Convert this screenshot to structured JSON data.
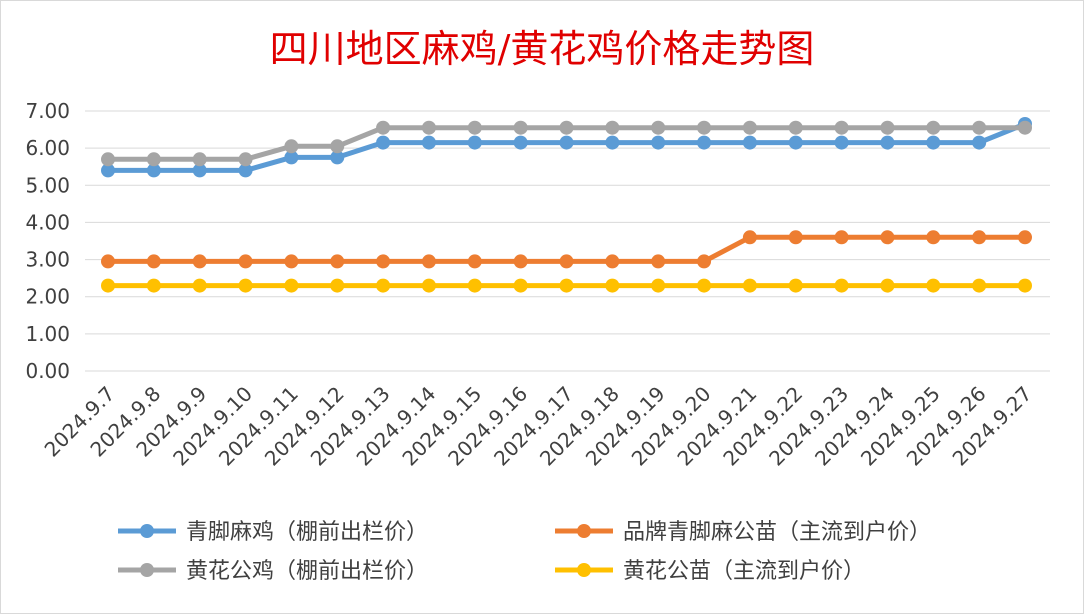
{
  "chart_data": {
    "type": "line",
    "title": "四川地区麻鸡/黄花鸡价格走势图",
    "xlabel": "",
    "ylabel": "",
    "ylim": [
      0,
      7
    ],
    "y_ticks": [
      "0.00",
      "1.00",
      "2.00",
      "3.00",
      "4.00",
      "5.00",
      "6.00",
      "7.00"
    ],
    "grid": true,
    "legend_position": "bottom",
    "categories": [
      "2024.9.7",
      "2024.9.8",
      "2024.9.9",
      "2024.9.10",
      "2024.9.11",
      "2024.9.12",
      "2024.9.13",
      "2024.9.14",
      "2024.9.15",
      "2024.9.16",
      "2024.9.17",
      "2024.9.18",
      "2024.9.19",
      "2024.9.20",
      "2024.9.21",
      "2024.9.22",
      "2024.9.23",
      "2024.9.24",
      "2024.9.25",
      "2024.9.26",
      "2024.9.27"
    ],
    "series": [
      {
        "name": "青脚麻鸡（棚前出栏价）",
        "color": "#5b9bd5",
        "values": [
          5.4,
          5.4,
          5.4,
          5.4,
          5.75,
          5.75,
          6.15,
          6.15,
          6.15,
          6.15,
          6.15,
          6.15,
          6.15,
          6.15,
          6.15,
          6.15,
          6.15,
          6.15,
          6.15,
          6.15,
          6.65
        ]
      },
      {
        "name": "品牌青脚麻公苗（主流到户价）",
        "color": "#ed7d31",
        "values": [
          2.95,
          2.95,
          2.95,
          2.95,
          2.95,
          2.95,
          2.95,
          2.95,
          2.95,
          2.95,
          2.95,
          2.95,
          2.95,
          2.95,
          3.6,
          3.6,
          3.6,
          3.6,
          3.6,
          3.6,
          3.6
        ]
      },
      {
        "name": "黄花公鸡（棚前出栏价）",
        "color": "#a5a5a5",
        "values": [
          5.7,
          5.7,
          5.7,
          5.7,
          6.05,
          6.05,
          6.55,
          6.55,
          6.55,
          6.55,
          6.55,
          6.55,
          6.55,
          6.55,
          6.55,
          6.55,
          6.55,
          6.55,
          6.55,
          6.55,
          6.55
        ]
      },
      {
        "name": "黄花公苗（主流到户价）",
        "color": "#ffc000",
        "values": [
          2.3,
          2.3,
          2.3,
          2.3,
          2.3,
          2.3,
          2.3,
          2.3,
          2.3,
          2.3,
          2.3,
          2.3,
          2.3,
          2.3,
          2.3,
          2.3,
          2.3,
          2.3,
          2.3,
          2.3,
          2.3
        ]
      }
    ],
    "legend_order": [
      0,
      1,
      2,
      3
    ]
  }
}
